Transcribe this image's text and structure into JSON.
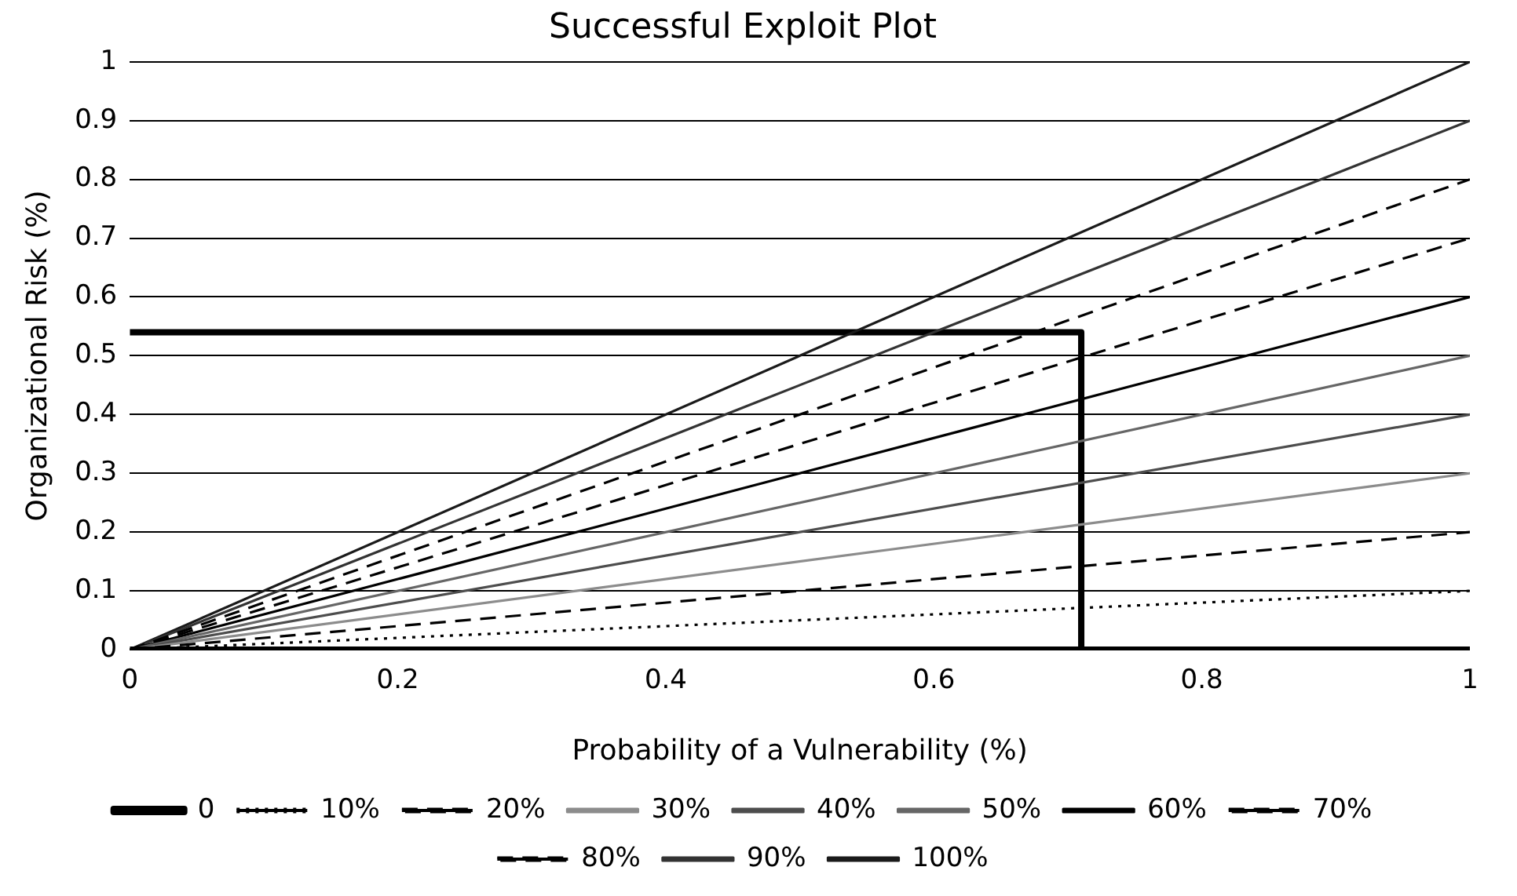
{
  "chart_data": {
    "type": "line",
    "title": "Successful Exploit Plot",
    "xlabel": "Probability of a Vulnerability (%)",
    "ylabel": "Organizational Risk (%)",
    "xlim": [
      0,
      1
    ],
    "xticks": [
      0,
      0.2,
      0.4,
      0.6,
      0.8,
      1
    ],
    "ylim": [
      0,
      1
    ],
    "yticks": [
      0,
      0.1,
      0.2,
      0.3,
      0.4,
      0.5,
      0.6,
      0.7,
      0.8,
      0.9,
      1
    ],
    "grid": "y",
    "legend": "bottom",
    "marker": "none",
    "series": [
      {
        "name": "0",
        "color": "#000000",
        "x": [
          0,
          1
        ],
        "values": [
          0,
          0
        ],
        "line_style": "solid"
      },
      {
        "name": "10%",
        "color": "#000000",
        "x": [
          0,
          1
        ],
        "values": [
          0,
          0.1
        ],
        "line_style": "dotted"
      },
      {
        "name": "20%",
        "color": "#000000",
        "x": [
          0,
          1
        ],
        "values": [
          0,
          0.2
        ],
        "line_style": "dashed"
      },
      {
        "name": "30%",
        "color": "#8c8c8c",
        "x": [
          0,
          1
        ],
        "values": [
          0,
          0.3
        ],
        "line_style": "solid"
      },
      {
        "name": "40%",
        "color": "#4d4d4d",
        "x": [
          0,
          1
        ],
        "values": [
          0,
          0.4
        ],
        "line_style": "solid"
      },
      {
        "name": "50%",
        "color": "#666666",
        "x": [
          0,
          1
        ],
        "values": [
          0,
          0.5
        ],
        "line_style": "solid"
      },
      {
        "name": "60%",
        "color": "#000000",
        "x": [
          0,
          1
        ],
        "values": [
          0,
          0.6
        ],
        "line_style": "solid"
      },
      {
        "name": "70%",
        "color": "#000000",
        "x": [
          0,
          1
        ],
        "values": [
          0,
          0.7
        ],
        "line_style": "dashed"
      },
      {
        "name": "80%",
        "color": "#000000",
        "x": [
          0,
          1
        ],
        "values": [
          0,
          0.8
        ],
        "line_style": "dashed"
      },
      {
        "name": "90%",
        "color": "#333333",
        "x": [
          0,
          1
        ],
        "values": [
          0,
          0.9
        ],
        "line_style": "solid"
      },
      {
        "name": "100%",
        "color": "#1a1a1a",
        "x": [
          0,
          1
        ],
        "values": [
          0,
          1
        ],
        "line_style": "solid"
      },
      {
        "color": "#000000",
        "x": [
          0,
          0.71,
          0.71
        ],
        "values": [
          0.54,
          0.54,
          0
        ],
        "line_style": "solid"
      }
    ]
  }
}
